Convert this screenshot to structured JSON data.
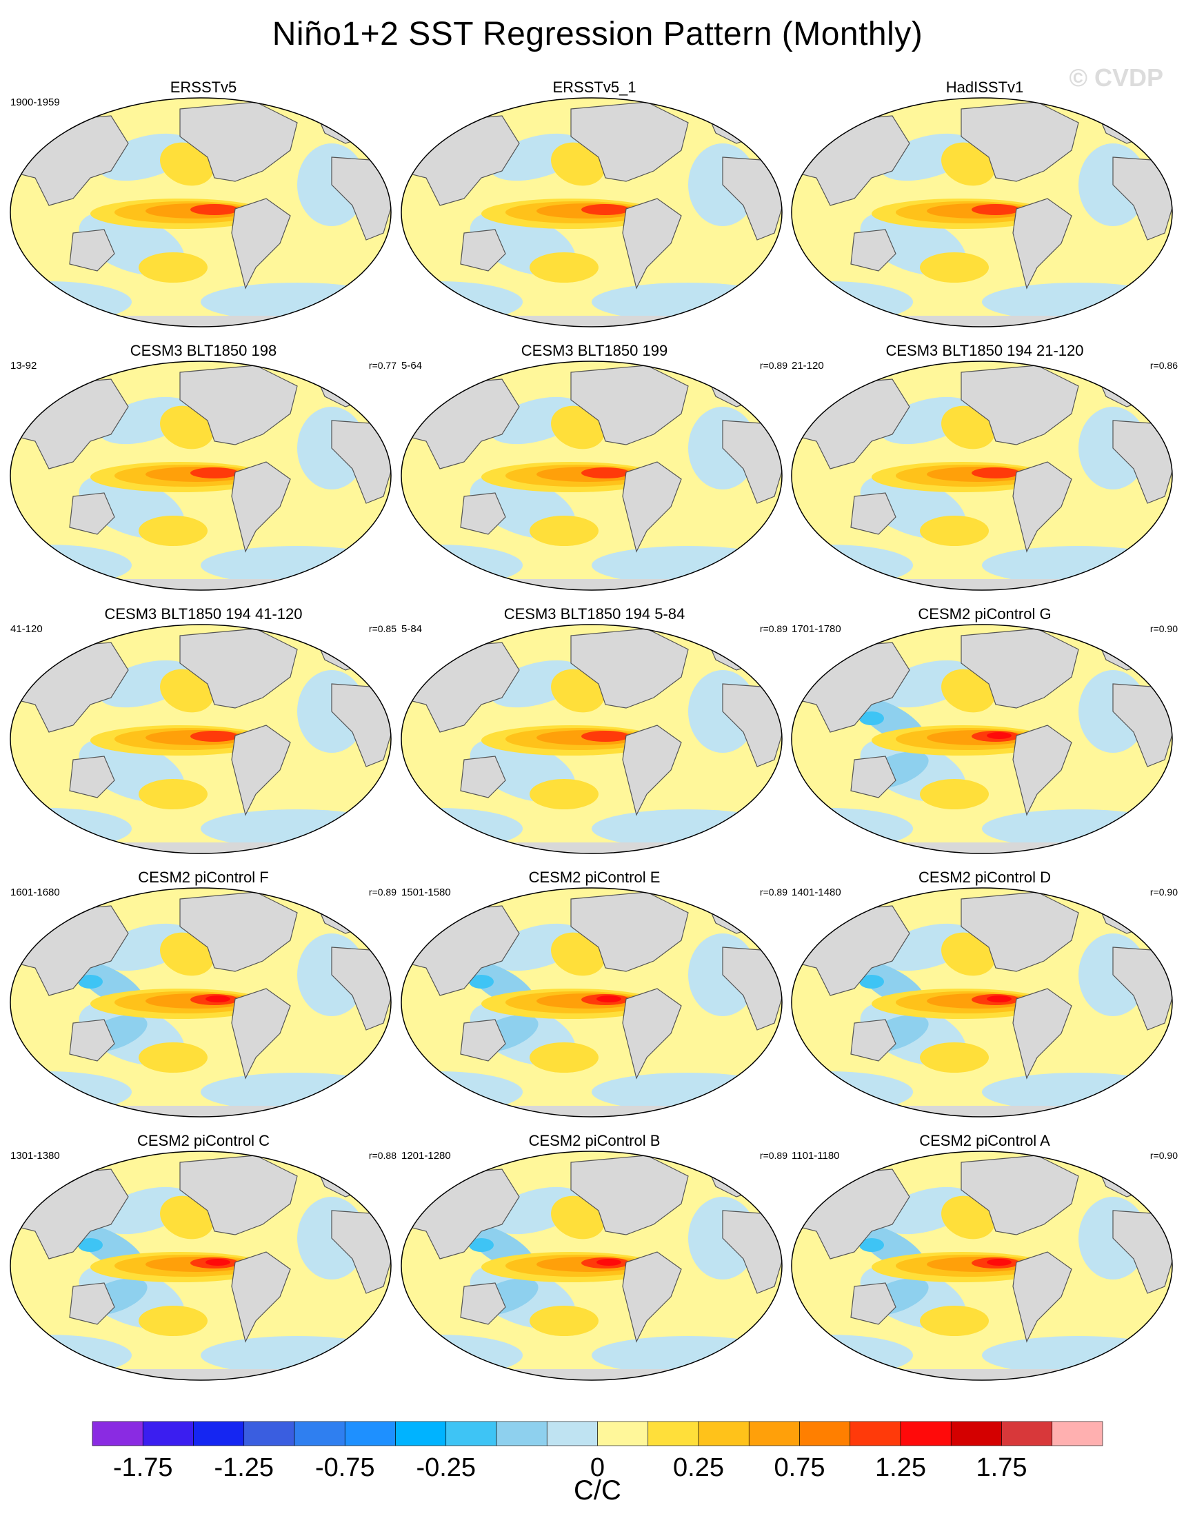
{
  "title": "Niño1+2 SST Regression Pattern (Monthly)",
  "watermark": "© CVDP",
  "map_data": {
    "projection": "Robinson-like global, Pacific-centered",
    "variable": "SST regression on Niño1+2 index",
    "panels": [
      {
        "title": "ERSSTv5",
        "period": "1900-1959",
        "corr": ""
      },
      {
        "title": "ERSSTv5_1",
        "period": "",
        "corr": ""
      },
      {
        "title": "HadISSTv1",
        "period": "",
        "corr": ""
      },
      {
        "title": "CESM3 BLT1850 198",
        "period": "13-92",
        "corr": "r=0.77"
      },
      {
        "title": "CESM3 BLT1850 199",
        "period": "5-64",
        "corr": "r=0.89"
      },
      {
        "title": "CESM3 BLT1850 194 21-120",
        "period": "21-120",
        "corr": "r=0.86"
      },
      {
        "title": "CESM3 BLT1850 194 41-120",
        "period": "41-120",
        "corr": "r=0.85"
      },
      {
        "title": "CESM3 BLT1850 194 5-84",
        "period": "5-84",
        "corr": "r=0.89"
      },
      {
        "title": "CESM2 piControl G",
        "period": "1701-1780",
        "corr": "r=0.90"
      },
      {
        "title": "CESM2 piControl F",
        "period": "1601-1680",
        "corr": "r=0.89"
      },
      {
        "title": "CESM2 piControl E",
        "period": "1501-1580",
        "corr": "r=0.89"
      },
      {
        "title": "CESM2 piControl D",
        "period": "1401-1480",
        "corr": "r=0.90"
      },
      {
        "title": "CESM2 piControl C",
        "period": "1301-1380",
        "corr": "r=0.88"
      },
      {
        "title": "CESM2 piControl B",
        "period": "1201-1280",
        "corr": "r=0.89"
      },
      {
        "title": "CESM2 piControl A",
        "period": "1101-1180",
        "corr": "r=0.90"
      }
    ]
  },
  "colorbar": {
    "colors": [
      "#8a2be2",
      "#3b1ef0",
      "#1526f2",
      "#3a5ee0",
      "#2f7ff0",
      "#1e90ff",
      "#00b3ff",
      "#3ec4f5",
      "#8ed0ee",
      "#bfe3f2",
      "#fff79a",
      "#ffdf3a",
      "#ffc21a",
      "#ffa00a",
      "#ff7f00",
      "#ff3a0a",
      "#ff0a0a",
      "#d40000",
      "#d8383a",
      "#ffb0b0"
    ],
    "tick_labels": [
      "-1.75",
      "-1.25",
      "-0.75",
      "-0.25",
      "0",
      "0.25",
      "0.75",
      "1.25",
      "1.75"
    ],
    "tick_boundaries": [
      1,
      3,
      5,
      7,
      10,
      12,
      14,
      16,
      18
    ],
    "units": "C/C"
  }
}
